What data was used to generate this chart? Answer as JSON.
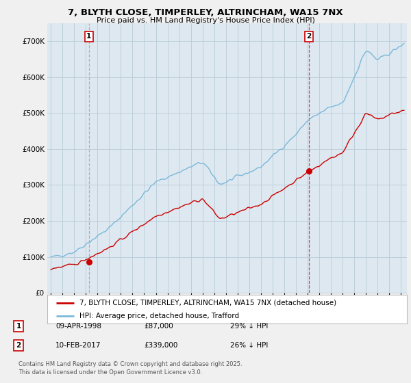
{
  "title": "7, BLYTH CLOSE, TIMPERLEY, ALTRINCHAM, WA15 7NX",
  "subtitle": "Price paid vs. HM Land Registry's House Price Index (HPI)",
  "legend_line1": "7, BLYTH CLOSE, TIMPERLEY, ALTRINCHAM, WA15 7NX (detached house)",
  "legend_line2": "HPI: Average price, detached house, Trafford",
  "annotation1_date": "09-APR-1998",
  "annotation1_price": "£87,000",
  "annotation1_hpi": "29% ↓ HPI",
  "annotation2_date": "10-FEB-2017",
  "annotation2_price": "£339,000",
  "annotation2_hpi": "26% ↓ HPI",
  "footer": "Contains HM Land Registry data © Crown copyright and database right 2025.\nThis data is licensed under the Open Government Licence v3.0.",
  "sale1_year": 1998.27,
  "sale1_price": 87000,
  "sale2_year": 2017.11,
  "sale2_price": 339000,
  "hpi_color": "#7ab8d9",
  "price_color": "#cc0000",
  "sale_dot_color": "#cc0000",
  "vline1_color": "#aaaaaa",
  "vline2_color": "#cc0000",
  "background_color": "#f0f0f0",
  "plot_bg_color": "#dde8f0",
  "grid_color": "#b8ccd8",
  "ylim": [
    0,
    750000
  ],
  "xlim_start": 1994.7,
  "xlim_end": 2025.5,
  "yticks": [
    0,
    100000,
    200000,
    300000,
    400000,
    500000,
    600000,
    700000
  ],
  "ylabels": [
    "£0",
    "£100K",
    "£200K",
    "£300K",
    "£400K",
    "£500K",
    "£600K",
    "£700K"
  ],
  "xtick_years": [
    1995,
    1996,
    1997,
    1998,
    1999,
    2000,
    2001,
    2002,
    2003,
    2004,
    2005,
    2006,
    2007,
    2008,
    2009,
    2010,
    2011,
    2012,
    2013,
    2014,
    2015,
    2016,
    2017,
    2018,
    2019,
    2020,
    2021,
    2022,
    2023,
    2024,
    2025
  ]
}
